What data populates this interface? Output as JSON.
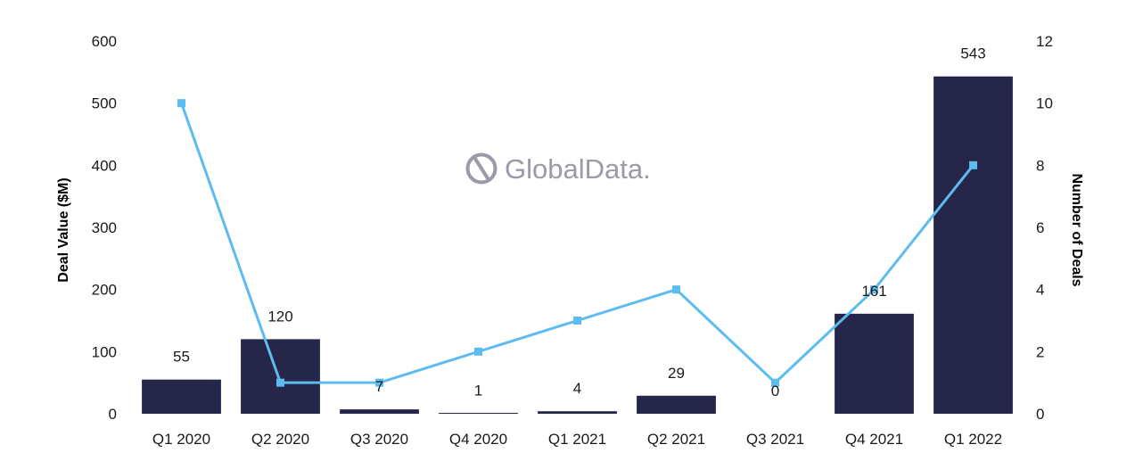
{
  "chart_data": {
    "type": "bar",
    "title": "",
    "categories": [
      "Q1 2020",
      "Q2 2020",
      "Q3 2020",
      "Q4 2020",
      "Q1 2021",
      "Q2 2021",
      "Q3 2021",
      "Q4 2021",
      "Q1 2022"
    ],
    "series": [
      {
        "name": "Deal Value ($M)",
        "type": "bar",
        "axis": "left",
        "color": "#25264a",
        "values": [
          55,
          120,
          7,
          1,
          4,
          29,
          0,
          161,
          543
        ],
        "labels": [
          "55",
          "120",
          "7",
          "1",
          "4",
          "29",
          "0",
          "161",
          "543"
        ]
      },
      {
        "name": "Number of Deals",
        "type": "line",
        "axis": "right",
        "color": "#5cbcf0",
        "values": [
          10,
          1,
          1,
          2,
          3,
          4,
          1,
          4,
          8
        ]
      }
    ],
    "ylabel": "Deal Value ($M)",
    "y2label": "Number of Deals",
    "ylim": [
      0,
      600
    ],
    "y2lim": [
      0,
      12
    ],
    "yticks": [
      "0",
      "100",
      "200",
      "300",
      "400",
      "500",
      "600"
    ],
    "y2ticks": [
      "0",
      "2",
      "4",
      "6",
      "8",
      "10",
      "12"
    ],
    "grid": false,
    "legend": "none"
  },
  "watermark": {
    "text": "GlobalData.",
    "icon": "globaldata-logo-icon",
    "color": "#9e98a8"
  }
}
